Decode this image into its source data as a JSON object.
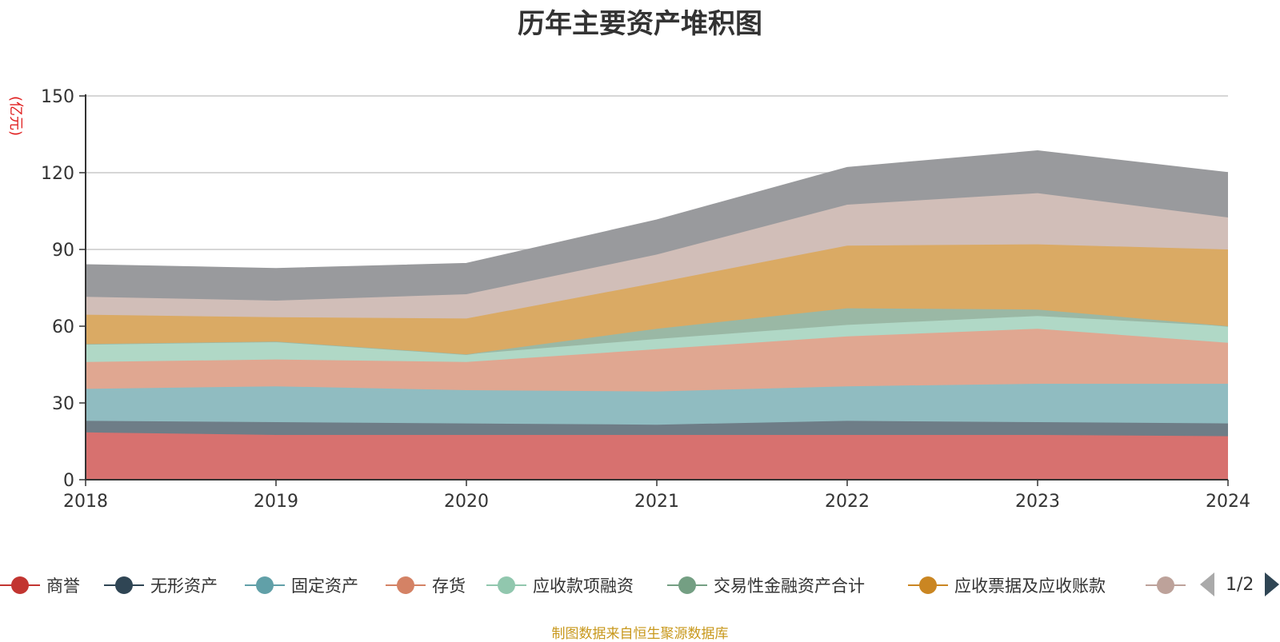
{
  "title": "历年主要资产堆积图",
  "unit_label": "(亿元)",
  "source_note": "制图数据来自恒生聚源数据库",
  "legend_pager": "1/2",
  "chart_data": {
    "type": "area",
    "stacked": true,
    "title": "历年主要资产堆积图",
    "ylabel": "(亿元)",
    "x": [
      "2018",
      "2019",
      "2020",
      "2021",
      "2022",
      "2023",
      "2024"
    ],
    "ylim": [
      0,
      150
    ],
    "yticks": [
      0,
      30,
      60,
      90,
      120,
      150
    ],
    "grid": true,
    "legend_position": "bottom",
    "series": [
      {
        "name": "商誉",
        "color": "#c23531",
        "fill": "#d7716f",
        "values": [
          18.5,
          17.5,
          17.5,
          17.5,
          17.5,
          17.5,
          17.0
        ]
      },
      {
        "name": "无形资产",
        "color": "#2f4554",
        "fill": "#6e7d87",
        "values": [
          4.5,
          5.0,
          4.5,
          4.0,
          5.5,
          5.0,
          5.0
        ]
      },
      {
        "name": "固定资产",
        "color": "#61a0a8",
        "fill": "#90bcc1",
        "values": [
          12.5,
          14.0,
          13.0,
          13.0,
          13.5,
          15.0,
          15.5
        ]
      },
      {
        "name": "存货",
        "color": "#d48265",
        "fill": "#e0a791",
        "values": [
          10.5,
          10.5,
          11.0,
          16.5,
          19.5,
          21.5,
          16.0
        ]
      },
      {
        "name": "应收款项融资",
        "color": "#91c7ae",
        "fill": "#b0d8c6",
        "values": [
          7.0,
          7.0,
          3.0,
          4.0,
          4.5,
          5.0,
          6.5
        ]
      },
      {
        "name": "交易性金融资产合计",
        "color": "#749f83",
        "fill": "#9ab8a5",
        "values": [
          0.0,
          0.0,
          0.0,
          4.0,
          6.5,
          2.5,
          0.0
        ]
      },
      {
        "name": "应收票据及应收账款",
        "color": "#ca8622",
        "fill": "#daaa64",
        "values": [
          11.5,
          9.5,
          14.0,
          18.0,
          24.5,
          25.5,
          30.0
        ]
      },
      {
        "name": "",
        "color": "#bda29a",
        "fill": "#d1beb8",
        "values": [
          7.0,
          6.5,
          9.5,
          11.0,
          16.0,
          20.0,
          12.5
        ]
      },
      {
        "name": "",
        "color": "#6e7074",
        "fill": "#999a9d",
        "values": [
          12.5,
          12.5,
          12.0,
          13.5,
          14.5,
          16.5,
          17.5
        ]
      }
    ]
  }
}
